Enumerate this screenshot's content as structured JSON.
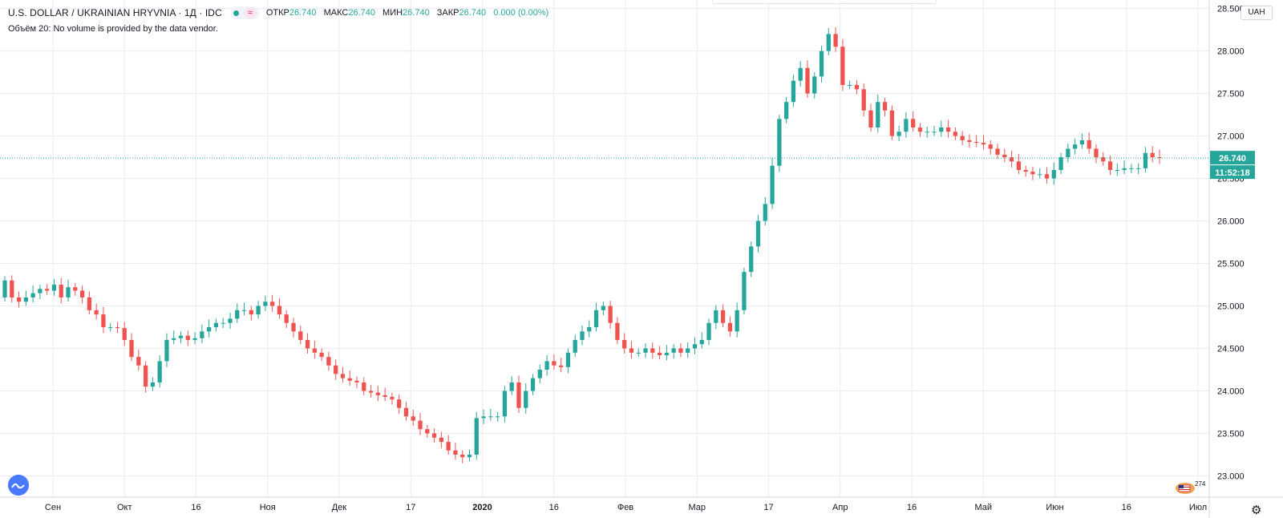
{
  "header": {
    "title": "U.S. DOLLAR / UKRAINIAN HRYVNIA · 1Д · IDC",
    "approx_symbol": "≈",
    "ohlc": [
      {
        "label": "ОТКР",
        "value": "26.740"
      },
      {
        "label": "МАКС",
        "value": "26.740"
      },
      {
        "label": "МИН",
        "value": "26.740"
      },
      {
        "label": "ЗАКР",
        "value": "26.740"
      }
    ],
    "change": "0.000 (0.00%)",
    "volume_note": "Объём 20: No volume is provided by the data vendor."
  },
  "currency_button": "UAH",
  "badge_number": "274",
  "colors": {
    "up": "#26a69a",
    "down": "#ef5350",
    "grid": "#e9ecf2",
    "price_line": "#26a69a"
  },
  "icons": {
    "logo": "wave-logo-icon",
    "settings": "gear-icon",
    "flag_badge": "flag-badge-icon"
  },
  "chart_data": {
    "type": "candlestick",
    "y_axis": {
      "ticks": [
        "28.500",
        "28.000",
        "27.500",
        "27.000",
        "26.500",
        "26.000",
        "25.500",
        "25.000",
        "24.500",
        "24.000",
        "23.500",
        "23.000"
      ],
      "min": 22.75,
      "max": 28.6
    },
    "x_axis": {
      "ticks": [
        "Сен",
        "Окт",
        "16",
        "Ноя",
        "Дек",
        "17",
        "2020",
        "16",
        "Фев",
        "Мар",
        "17",
        "Апр",
        "16",
        "Май",
        "Июн",
        "16",
        "Июл"
      ]
    },
    "last_price": {
      "value": 26.74,
      "label": "26.740",
      "countdown": "11:52:18"
    },
    "grid": true,
    "closes": [
      25.3,
      25.1,
      25.05,
      25.1,
      25.15,
      25.2,
      25.18,
      25.25,
      25.1,
      25.22,
      25.18,
      25.1,
      24.95,
      24.9,
      24.75,
      24.75,
      24.74,
      24.6,
      24.4,
      24.3,
      24.05,
      24.1,
      24.35,
      24.6,
      24.62,
      24.65,
      24.6,
      24.62,
      24.7,
      24.75,
      24.8,
      24.8,
      24.85,
      24.95,
      24.95,
      24.9,
      25.0,
      25.05,
      25.0,
      24.9,
      24.8,
      24.7,
      24.6,
      24.5,
      24.45,
      24.4,
      24.3,
      24.2,
      24.15,
      24.12,
      24.1,
      24.0,
      23.98,
      23.95,
      23.93,
      23.9,
      23.8,
      23.7,
      23.65,
      23.55,
      23.5,
      23.45,
      23.4,
      23.3,
      23.25,
      23.22,
      23.25,
      23.68,
      23.7,
      23.7,
      23.7,
      24.0,
      24.1,
      23.8,
      24.0,
      24.15,
      24.25,
      24.35,
      24.3,
      24.28,
      24.45,
      24.6,
      24.7,
      24.75,
      24.95,
      25.0,
      24.8,
      24.6,
      24.5,
      24.45,
      24.45,
      24.5,
      24.45,
      24.42,
      24.45,
      24.5,
      24.45,
      24.5,
      24.55,
      24.6,
      24.8,
      24.95,
      24.8,
      24.7,
      24.95,
      25.4,
      25.7,
      26.0,
      26.2,
      26.65,
      27.2,
      27.4,
      27.65,
      27.8,
      27.5,
      27.7,
      28.0,
      28.2,
      28.05,
      27.6,
      27.6,
      27.55,
      27.3,
      27.1,
      27.4,
      27.3,
      27.0,
      27.05,
      27.2,
      27.1,
      27.05,
      27.05,
      27.05,
      27.1,
      27.05,
      27.0,
      26.95,
      26.93,
      26.92,
      26.9,
      26.85,
      26.78,
      26.75,
      26.7,
      26.6,
      26.58,
      26.55,
      26.55,
      26.5,
      26.6,
      26.75,
      26.85,
      26.9,
      26.95,
      26.85,
      26.75,
      26.7,
      26.6,
      26.6,
      26.62,
      26.62,
      26.62,
      26.8,
      26.75,
      26.74
    ]
  }
}
